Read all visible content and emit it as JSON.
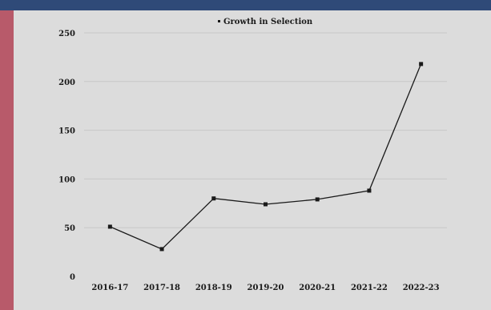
{
  "chart_data": {
    "type": "line",
    "categories": [
      "2016-17",
      "2017-18",
      "2018-19",
      "2019-20",
      "2020-21",
      "2021-22",
      "2022-23"
    ],
    "series": [
      {
        "name": "Growth in Selection",
        "values": [
          51,
          28,
          80,
          74,
          79,
          88,
          218
        ]
      }
    ],
    "title": "",
    "xlabel": "",
    "ylabel": "",
    "ylim": [
      0,
      250
    ],
    "yticks": [
      0,
      50,
      100,
      150,
      200,
      250
    ],
    "grid": true,
    "legend_position": "top-center",
    "colors": {
      "line": "#1a1a1a",
      "marker": "#1a1a1a",
      "grid": "#c8c8c8",
      "background": "#dcdcdc",
      "frame": "#b85a6a",
      "top_bar": "#2f4a78"
    }
  }
}
